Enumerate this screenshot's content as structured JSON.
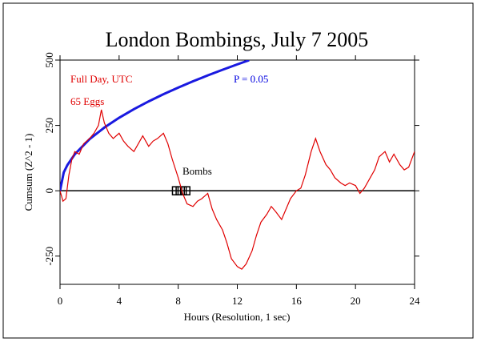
{
  "chart_data": {
    "type": "line",
    "title": "London Bombings, July 7 2005",
    "x_label": "Hours (Resolution, 1 sec)",
    "y_label": "Cumsum (Z^2 - 1)",
    "xlim": [
      0,
      24
    ],
    "xticks": [
      0,
      4,
      8,
      12,
      16,
      20,
      24
    ],
    "ylim": [
      -358,
      500
    ],
    "yticks": [
      -250,
      0,
      250,
      500
    ],
    "annotations": [
      {
        "text": "Full Day, UTC",
        "color": "#e00000"
      },
      {
        "text": "65 Eggs",
        "color": "#e00000"
      },
      {
        "text": "P = 0.05",
        "color": "#0000e0"
      }
    ],
    "bombs": {
      "label": "Bombs",
      "x": [
        7.8,
        8.05,
        8.35,
        8.6
      ],
      "color": "#000000"
    },
    "series": [
      {
        "name": "P = 0.05",
        "color": "#1a1ae0",
        "x": [
          0,
          0.25,
          0.5,
          1,
          2,
          3,
          4,
          5,
          6,
          7,
          8,
          9,
          10,
          11,
          12,
          12.5,
          12.8
        ],
        "values": [
          0,
          69.8,
          98.7,
          139.6,
          197.4,
          241.8,
          279.2,
          312.1,
          341.9,
          369.3,
          394.8,
          418.8,
          441.4,
          462.9,
          483.5,
          493.5,
          499.4
        ]
      },
      {
        "name": "Cumsum",
        "color": "#e00000",
        "x": [
          0,
          0.2,
          0.4,
          0.6,
          0.8,
          1,
          1.3,
          1.6,
          2,
          2.3,
          2.6,
          2.8,
          3,
          3.3,
          3.6,
          4,
          4.3,
          4.6,
          5,
          5.3,
          5.6,
          6,
          6.3,
          6.6,
          7,
          7.3,
          7.6,
          8,
          8.3,
          8.6,
          9,
          9.3,
          9.6,
          10,
          10.3,
          10.6,
          11,
          11.3,
          11.6,
          12,
          12.3,
          12.6,
          13,
          13.3,
          13.6,
          14,
          14.3,
          14.6,
          15,
          15.3,
          15.6,
          16,
          16.3,
          16.6,
          17,
          17.3,
          17.6,
          18,
          18.3,
          18.6,
          19,
          19.3,
          19.6,
          20,
          20.3,
          20.6,
          21,
          21.3,
          21.6,
          22,
          22.3,
          22.6,
          23,
          23.3,
          23.6,
          24
        ],
        "values": [
          0,
          -40,
          -30,
          60,
          120,
          150,
          140,
          180,
          200,
          220,
          250,
          310,
          260,
          220,
          200,
          220,
          190,
          170,
          150,
          180,
          210,
          170,
          190,
          200,
          220,
          180,
          120,
          50,
          -10,
          -50,
          -60,
          -40,
          -30,
          -10,
          -70,
          -110,
          -150,
          -200,
          -260,
          -290,
          -300,
          -280,
          -230,
          -170,
          -120,
          -90,
          -60,
          -80,
          -110,
          -70,
          -30,
          0,
          10,
          60,
          150,
          200,
          150,
          100,
          80,
          50,
          30,
          20,
          30,
          20,
          -10,
          10,
          50,
          80,
          130,
          150,
          110,
          140,
          100,
          80,
          90,
          150
        ]
      }
    ]
  }
}
